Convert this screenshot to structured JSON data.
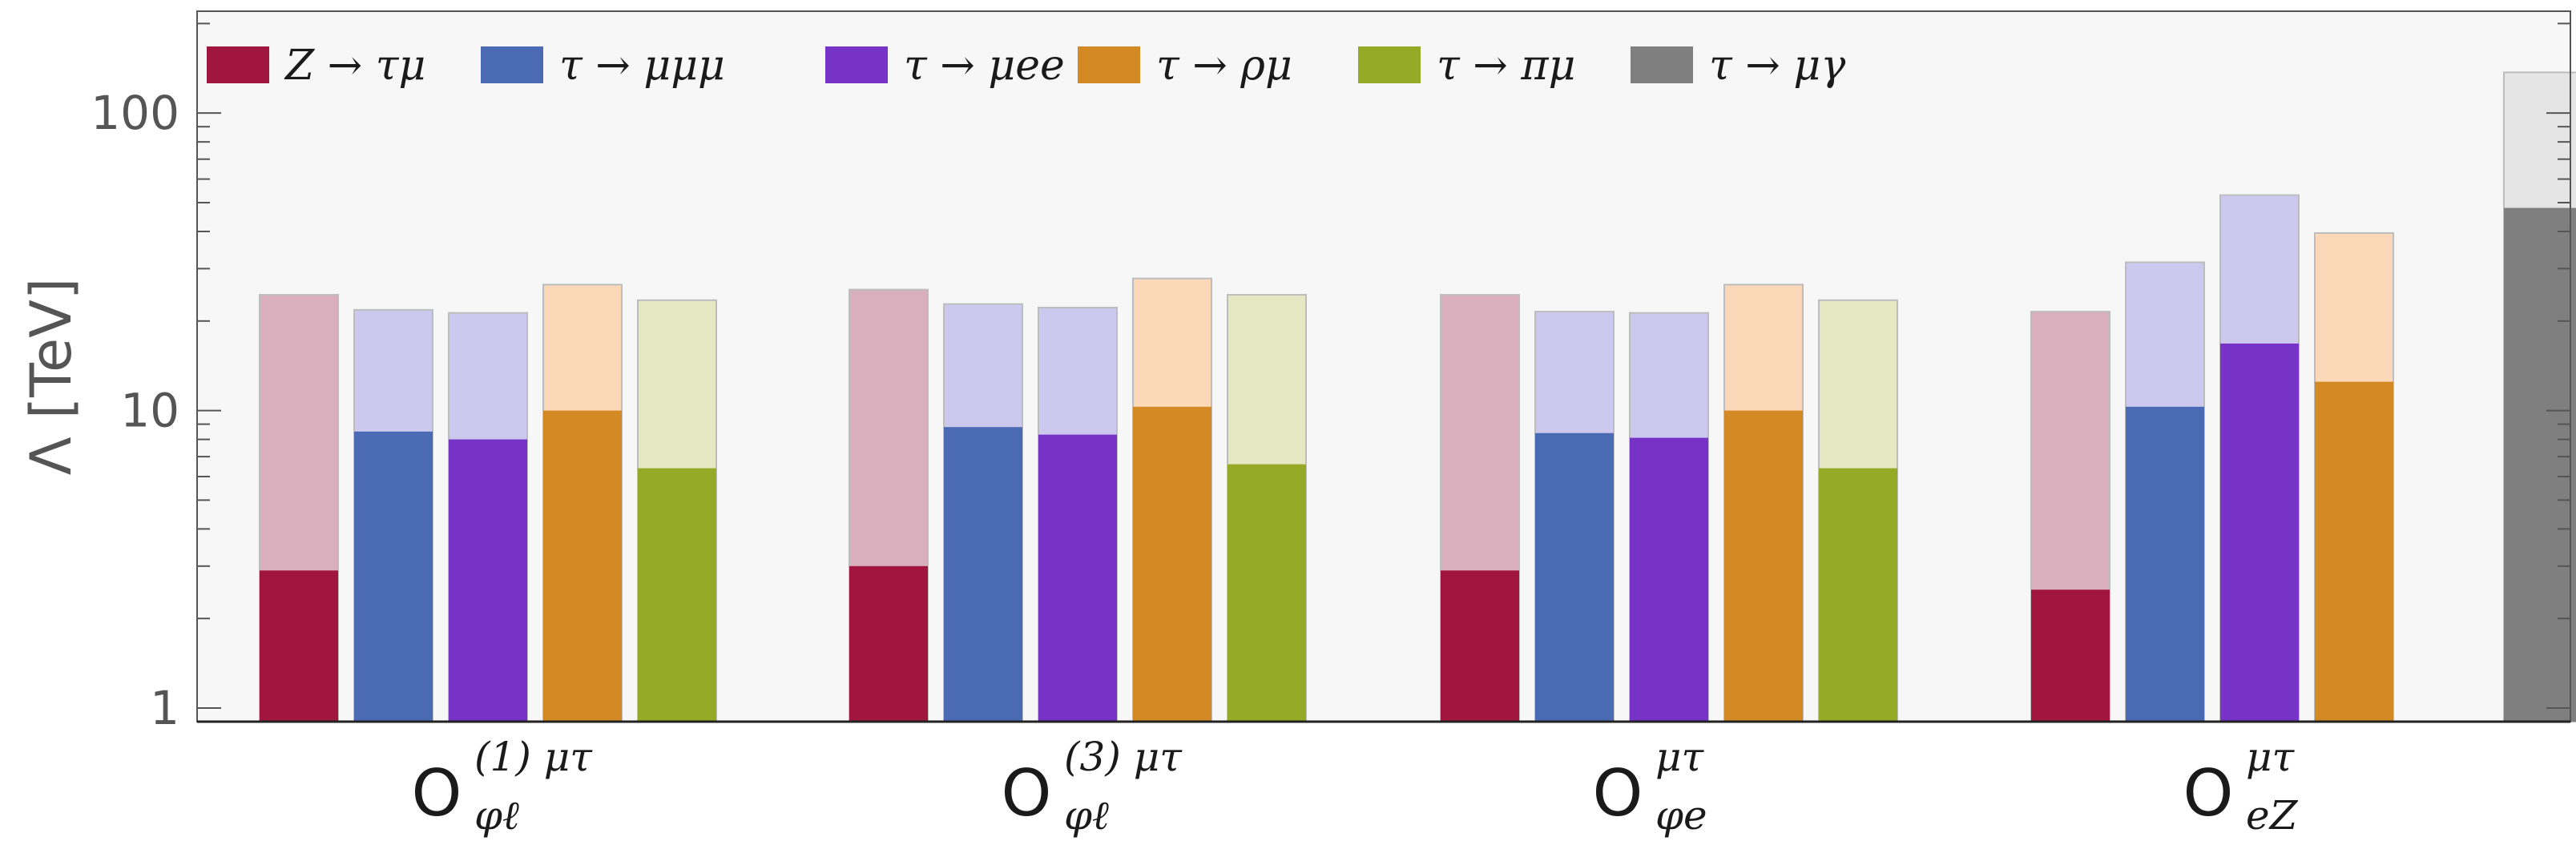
{
  "chart_data": {
    "type": "bar",
    "scale": "log",
    "ylabel": "Λ [TeV]",
    "ylim": [
      0.9,
      220
    ],
    "yticks": [
      1,
      10,
      100
    ],
    "ytick_labels": [
      "1",
      "10",
      "100"
    ],
    "grid": false,
    "legend_position": "top-left",
    "categories": [
      {
        "main": "O",
        "sup": "(1) μτ",
        "sub": "φℓ"
      },
      {
        "main": "O",
        "sup": "(3) μτ",
        "sub": "φℓ"
      },
      {
        "main": "O",
        "sup": "μτ",
        "sub": "φe"
      },
      {
        "main": "O",
        "sup": "μτ",
        "sub": "eZ"
      }
    ],
    "series": [
      {
        "name": "Z → τμ",
        "color": "#a0163f",
        "light": "#d9afbd",
        "values": [
          2.9,
          3.0,
          2.9,
          2.5
        ],
        "projected": [
          24.5,
          25.5,
          24.5,
          21.5
        ]
      },
      {
        "name": "τ → μμμ",
        "color": "#4a6ab4",
        "light": "#cdc9ee",
        "values": [
          8.5,
          8.8,
          8.4,
          10.3
        ],
        "projected": [
          21.8,
          22.8,
          21.5,
          31.5
        ]
      },
      {
        "name": "τ → μee",
        "color": "#7633c6",
        "light": "#cdc9ee",
        "values": [
          8.0,
          8.3,
          8.1,
          16.8
        ],
        "projected": [
          21.3,
          22.2,
          21.3,
          53.0
        ]
      },
      {
        "name": "τ → ρμ",
        "color": "#d38a24",
        "light": "#fbd8b8",
        "values": [
          10.0,
          10.3,
          10.0,
          12.5
        ],
        "projected": [
          26.5,
          27.8,
          26.5,
          39.5
        ]
      },
      {
        "name": "τ → πμ",
        "color": "#95aa27",
        "light": "#e4e8c3",
        "values": [
          6.4,
          6.6,
          6.4,
          null
        ],
        "projected": [
          23.5,
          24.5,
          23.5,
          null
        ]
      },
      {
        "name": "τ → μγ",
        "color": "#7f7f7f",
        "light": "#e5e5e5",
        "values": [
          null,
          null,
          null,
          48.0
        ],
        "projected": [
          null,
          null,
          null,
          137.0
        ]
      }
    ]
  }
}
